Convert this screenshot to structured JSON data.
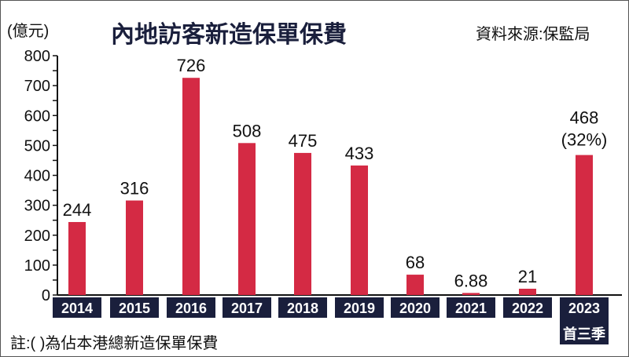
{
  "chart_data": {
    "type": "bar",
    "title": "內地訪客新造保單保費",
    "ylabel": "(億元)",
    "source": "資料來源:保監局",
    "note": "註:( )為佔本港總新造保單保費",
    "categories": [
      "2014",
      "2015",
      "2016",
      "2017",
      "2018",
      "2019",
      "2020",
      "2021",
      "2022",
      "2023"
    ],
    "category_sublabels": {
      "2023": "首三季"
    },
    "values": [
      244,
      316,
      726,
      508,
      475,
      433,
      68,
      6.88,
      21,
      468
    ],
    "data_labels": [
      "244",
      "316",
      "726",
      "508",
      "475",
      "433",
      "68",
      "6.88",
      "21",
      "468"
    ],
    "annotations": {
      "2023": "(32%)"
    },
    "ylim": [
      0,
      800
    ],
    "yticks": [
      0,
      100,
      200,
      300,
      400,
      500,
      600,
      700,
      800
    ],
    "grid": false,
    "colors": {
      "bar": "#d42a44",
      "category_box": "#1a1f3c",
      "title": "#1a1f3c"
    }
  }
}
